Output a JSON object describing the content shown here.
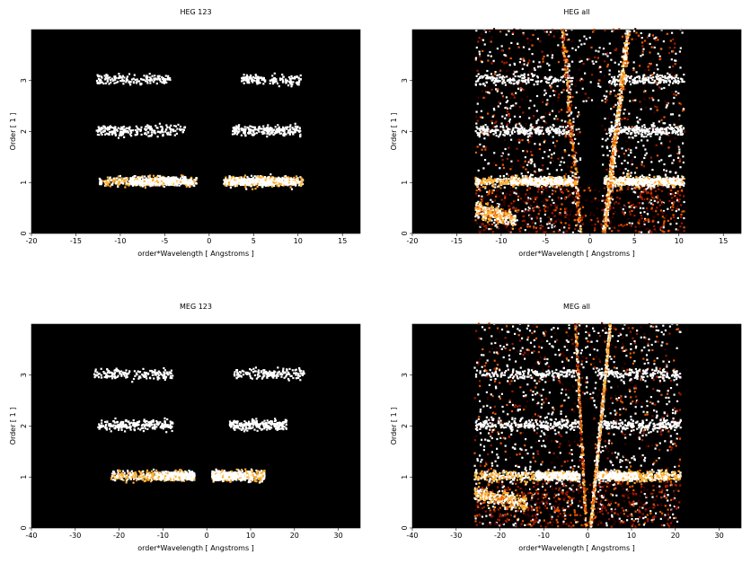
{
  "figure": {
    "background": "#ffffff",
    "plot_background": "#000000"
  },
  "chart_data": [
    {
      "type": "heatmap",
      "title": "HEG 123",
      "xlabel": "order*Wavelength [ Angstroms ]",
      "ylabel": "Order [ 1 ]",
      "xlim": [
        -20,
        17
      ],
      "ylim": [
        0,
        4
      ],
      "xticks": [
        -20,
        -15,
        -10,
        -5,
        0,
        5,
        10,
        15
      ],
      "yticks": [
        0,
        1,
        2,
        3
      ],
      "colormap": [
        "#3a0000",
        "#9e1a00",
        "#e65a00",
        "#ffb030",
        "#ffffff"
      ],
      "bands": [
        {
          "order": 1,
          "x_ranges": [
            [
              -12.5,
              -1.5
            ],
            [
              1.5,
              10.5
            ]
          ],
          "core": [
            [
              -9,
              -2
            ],
            [
              2,
              9.5
            ]
          ],
          "intensity": "high"
        },
        {
          "order": 2,
          "x_ranges": [
            [
              -12.8,
              -2.8
            ],
            [
              2.5,
              10.2
            ]
          ],
          "intensity": "medium"
        },
        {
          "order": 3,
          "x_ranges": [
            [
              -12.8,
              -4.5
            ],
            [
              3.5,
              10.2
            ]
          ],
          "intensity": "low"
        }
      ]
    },
    {
      "type": "heatmap",
      "title": "HEG all",
      "xlabel": "order*Wavelength [ Angstroms ]",
      "ylabel": "Order [ 1 ]",
      "xlim": [
        -20,
        17
      ],
      "ylim": [
        0,
        4
      ],
      "xticks": [
        -20,
        -15,
        -10,
        -5,
        0,
        5,
        10,
        15
      ],
      "yticks": [
        0,
        1,
        2,
        3
      ],
      "colormap": [
        "#3a0000",
        "#9e1a00",
        "#e65a00",
        "#ffb030",
        "#ffffff"
      ],
      "bands": [
        {
          "order": 1,
          "x_ranges": [
            [
              -13,
              -1.5
            ],
            [
              1.5,
              10.5
            ]
          ],
          "core": [
            [
              -9,
              -1.5
            ],
            [
              1.5,
              10
            ]
          ],
          "intensity": "high"
        },
        {
          "order": 2,
          "x_ranges": [
            [
              -13,
              -2
            ],
            [
              2,
              10.5
            ]
          ],
          "intensity": "medium"
        },
        {
          "order": 3,
          "x_ranges": [
            [
              -13,
              -2
            ],
            [
              2,
              10.5
            ]
          ],
          "intensity": "low"
        }
      ],
      "background_region": {
        "x_range": [
          -13,
          10.5
        ],
        "y_range": [
          0,
          4
        ],
        "edge_x": [
          -13,
          10.5
        ],
        "density": "high"
      },
      "diagonal_streaks": [
        {
          "from": [
            1.5,
            0
          ],
          "to": [
            4.2,
            4
          ],
          "intensity": "high"
        },
        {
          "from": [
            -1.2,
            0
          ],
          "to": [
            -3.2,
            4
          ],
          "intensity": "low"
        }
      ],
      "blob": {
        "x_range": [
          -13,
          -8.5
        ],
        "y_center": 0.3,
        "intensity": "medium"
      }
    },
    {
      "type": "heatmap",
      "title": "MEG 123",
      "xlabel": "order*Wavelength [ Angstroms ]",
      "ylabel": "Order [ 1 ]",
      "xlim": [
        -40,
        35
      ],
      "ylim": [
        0,
        4
      ],
      "xticks": [
        -40,
        -30,
        -20,
        -10,
        0,
        10,
        20,
        30
      ],
      "yticks": [
        0,
        1,
        2,
        3
      ],
      "colormap": [
        "#3a0000",
        "#9e1a00",
        "#e65a00",
        "#ffb030",
        "#ffffff"
      ],
      "bands": [
        {
          "order": 1,
          "x_ranges": [
            [
              -22,
              -3
            ],
            [
              1,
              13
            ]
          ],
          "core": [
            [
              -12,
              -3
            ],
            [
              1,
              10
            ]
          ],
          "intensity": "high"
        },
        {
          "order": 2,
          "x_ranges": [
            [
              -25,
              -8
            ],
            [
              5,
              18
            ]
          ],
          "intensity": "medium"
        },
        {
          "order": 3,
          "x_ranges": [
            [
              -26,
              -8
            ],
            [
              6,
              22
            ]
          ],
          "intensity": "low"
        }
      ]
    },
    {
      "type": "heatmap",
      "title": "MEG all",
      "xlabel": "order*Wavelength [ Angstroms ]",
      "ylabel": "Order [ 1 ]",
      "xlim": [
        -40,
        35
      ],
      "ylim": [
        0,
        4
      ],
      "xticks": [
        -40,
        -30,
        -20,
        -10,
        0,
        10,
        20,
        30
      ],
      "yticks": [
        0,
        1,
        2,
        3
      ],
      "colormap": [
        "#3a0000",
        "#9e1a00",
        "#e65a00",
        "#ffb030",
        "#ffffff"
      ],
      "bands": [
        {
          "order": 1,
          "x_ranges": [
            [
              -26,
              -2
            ],
            [
              2,
              21
            ]
          ],
          "core": [
            [
              -12,
              -2
            ],
            [
              2,
              11
            ]
          ],
          "intensity": "high"
        },
        {
          "order": 2,
          "x_ranges": [
            [
              -26,
              -2
            ],
            [
              2,
              21
            ]
          ],
          "intensity": "medium"
        },
        {
          "order": 3,
          "x_ranges": [
            [
              -26,
              -2
            ],
            [
              2,
              21
            ]
          ],
          "intensity": "low"
        }
      ],
      "background_region": {
        "x_range": [
          -26,
          21
        ],
        "y_range": [
          0,
          4
        ],
        "edge_x": [
          -26,
          21
        ],
        "density": "high"
      },
      "diagonal_streaks": [
        {
          "from": [
            0.5,
            0
          ],
          "to": [
            5,
            4
          ],
          "intensity": "high"
        },
        {
          "from": [
            -0.5,
            0
          ],
          "to": [
            -3,
            4
          ],
          "intensity": "low"
        }
      ],
      "blob": {
        "x_range": [
          -26,
          -14
        ],
        "y_center": 0.5,
        "intensity": "medium"
      }
    }
  ]
}
